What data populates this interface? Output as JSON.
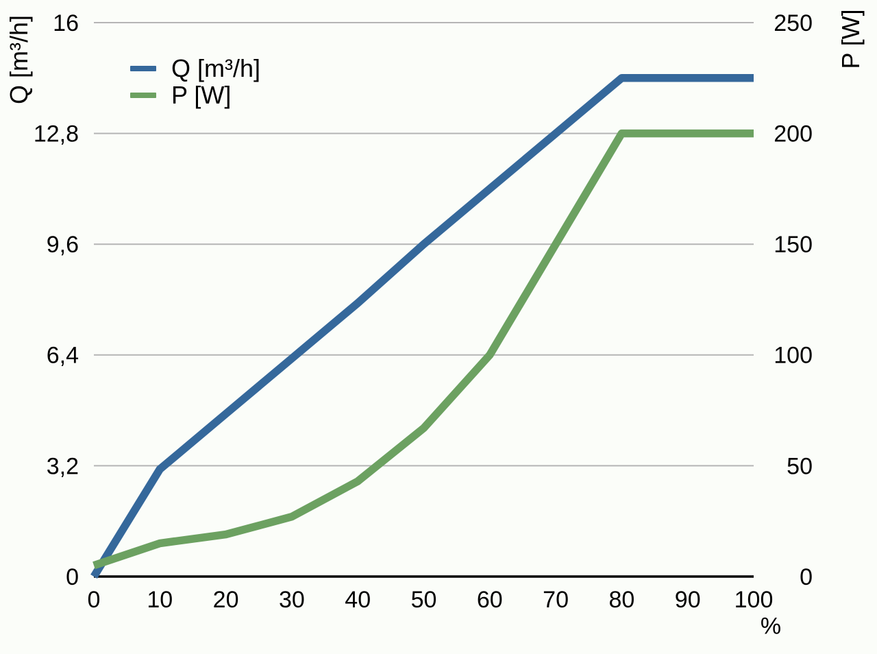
{
  "chart_data": {
    "type": "line",
    "title": "",
    "xlabel": "%",
    "xlim": [
      0,
      100
    ],
    "x": [
      0,
      10,
      20,
      30,
      40,
      50,
      60,
      70,
      80,
      90,
      100
    ],
    "x_tick_labels": [
      "0",
      "10",
      "20",
      "30",
      "40",
      "50",
      "60",
      "70",
      "80",
      "90",
      "100"
    ],
    "left_axis": {
      "label": "Q [m³/h]",
      "lim": [
        0,
        16
      ],
      "ticks": [
        16,
        12.8,
        9.6,
        6.4,
        3.2,
        0
      ],
      "tick_labels": [
        "16",
        "12,8",
        "9,6",
        "6,4",
        "3,2",
        "0"
      ]
    },
    "right_axis": {
      "label": "P [W]",
      "lim": [
        0,
        250
      ],
      "ticks": [
        250,
        200,
        150,
        100,
        50,
        0
      ],
      "tick_labels": [
        "250",
        "200",
        "150",
        "100",
        "50",
        "0"
      ]
    },
    "series": [
      {
        "name": "Q [m³/h]",
        "axis": "left",
        "color": "#35689B",
        "values": [
          0,
          3.1,
          4.7,
          6.3,
          7.9,
          9.6,
          11.2,
          12.8,
          14.4,
          14.4,
          14.4
        ]
      },
      {
        "name": "P [W]",
        "axis": "right",
        "color": "#6CA161",
        "values": [
          5,
          15,
          19,
          27,
          43,
          67,
          100,
          150,
          200,
          200,
          200
        ]
      }
    ],
    "grid": "horizontal",
    "legend_position": "top-left-inside",
    "colors": {
      "background": "#FBFDF9",
      "gridline": "#B5B5B5",
      "axis_line": "#000000",
      "text": "#000000"
    }
  }
}
